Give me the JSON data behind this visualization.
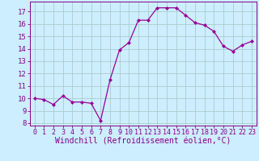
{
  "x": [
    0,
    1,
    2,
    3,
    4,
    5,
    6,
    7,
    8,
    9,
    10,
    11,
    12,
    13,
    14,
    15,
    16,
    17,
    18,
    19,
    20,
    21,
    22,
    23
  ],
  "y": [
    10.0,
    9.9,
    9.5,
    10.2,
    9.7,
    9.7,
    9.6,
    8.2,
    11.5,
    13.9,
    14.5,
    16.3,
    16.3,
    17.3,
    17.3,
    17.3,
    16.7,
    16.1,
    15.9,
    15.4,
    14.2,
    13.8,
    14.3,
    14.6
  ],
  "line_color": "#990099",
  "marker": "D",
  "marker_size": 2.0,
  "bg_color": "#cceeff",
  "grid_color": "#aacccc",
  "xlabel": "Windchill (Refroidissement éolien,°C)",
  "xlim": [
    -0.5,
    23.5
  ],
  "ylim": [
    7.8,
    17.8
  ],
  "yticks": [
    8,
    9,
    10,
    11,
    12,
    13,
    14,
    15,
    16,
    17
  ],
  "xticks": [
    0,
    1,
    2,
    3,
    4,
    5,
    6,
    7,
    8,
    9,
    10,
    11,
    12,
    13,
    14,
    15,
    16,
    17,
    18,
    19,
    20,
    21,
    22,
    23
  ],
  "tick_color": "#880088",
  "spine_color": "#880088",
  "label_fontsize": 7.0,
  "tick_fontsize": 6.0,
  "ylabel_fontsize": 6.5
}
